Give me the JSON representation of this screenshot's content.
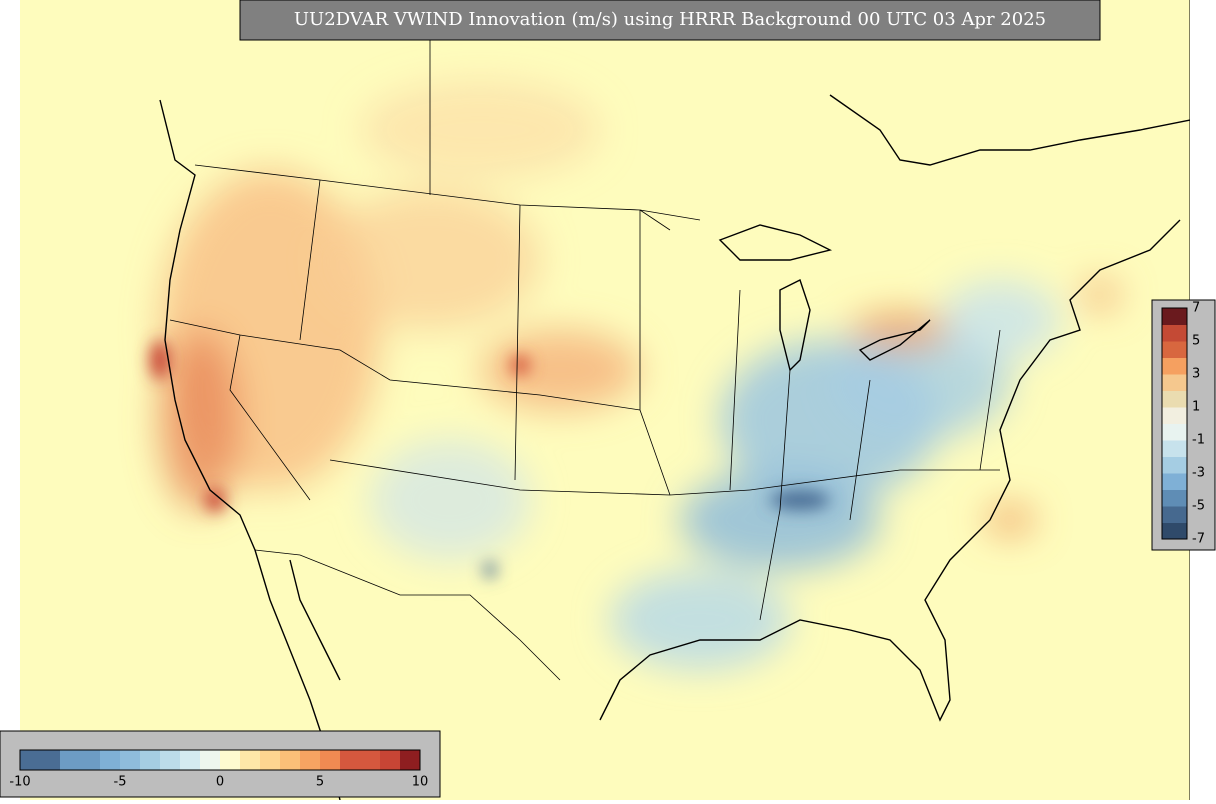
{
  "title": "UU2DVAR VWIND Innovation (m/s) using HRRR Background 00 UTC 03 Apr 2025",
  "colorbars": [
    {
      "orientation": "horizontal",
      "range": [
        -10,
        10
      ],
      "ticks": [
        -10,
        -5,
        0,
        5,
        10
      ],
      "colors": [
        "#4a6d94",
        "#4a6d94",
        "#6d9cc4",
        "#6d9cc4",
        "#7fb0d6",
        "#8fbcdb",
        "#a5cde3",
        "#bcdcea",
        "#d4ebf0",
        "#eef6ee",
        "#fefbd0",
        "#fde8a8",
        "#fdd590",
        "#fbbf78",
        "#f7a362",
        "#f08a52",
        "#d5583e",
        "#d5583e",
        "#c84535",
        "#8e1e20"
      ]
    },
    {
      "orientation": "vertical",
      "range": [
        -7,
        7
      ],
      "ticks": [
        7,
        5,
        3,
        1,
        -1,
        -3,
        -5,
        -7
      ],
      "colors": [
        "#2f4a6a",
        "#46698f",
        "#5f8db5",
        "#7fb0d6",
        "#a5cde3",
        "#c7e2ec",
        "#e8f3f0",
        "#f2efe0",
        "#eadcb0",
        "#f5c88e",
        "#f5a060",
        "#d8673f",
        "#c44a35",
        "#6a1a1e"
      ]
    }
  ]
}
